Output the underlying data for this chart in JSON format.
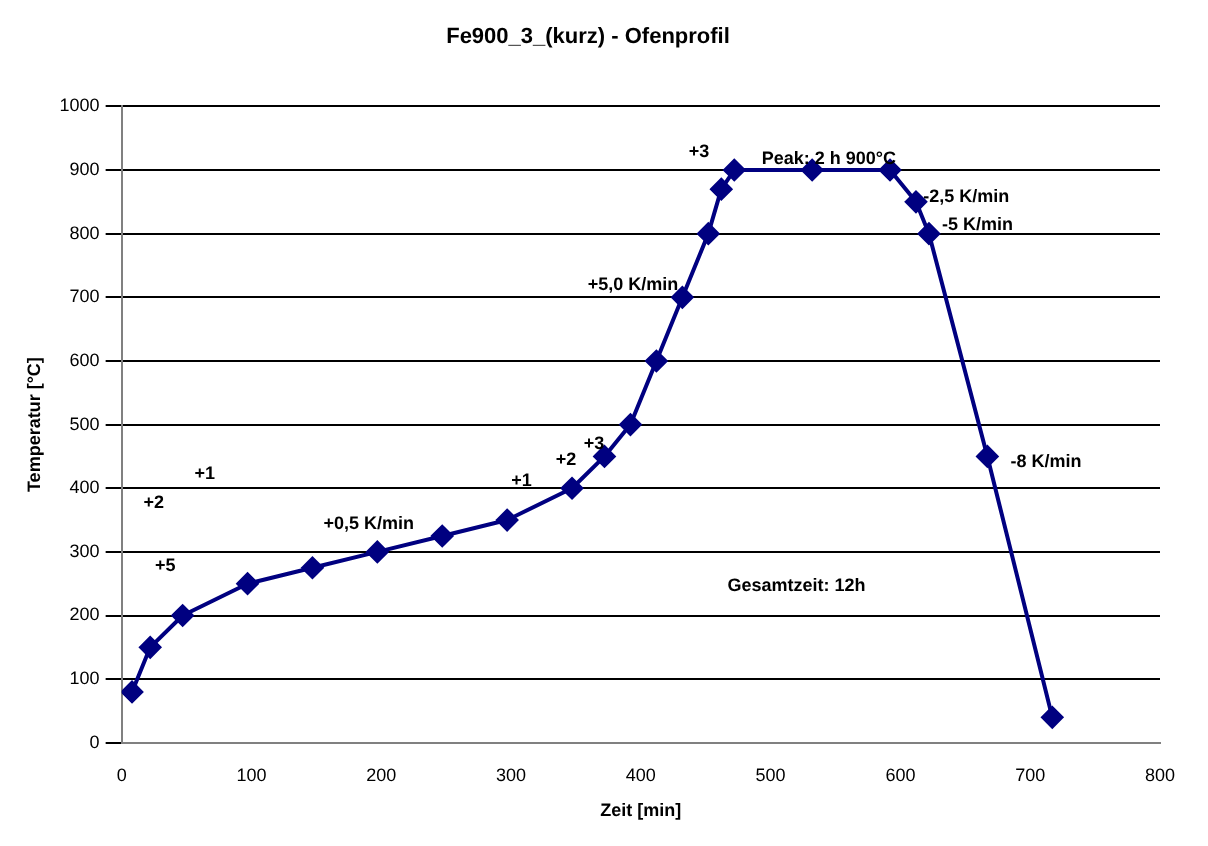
{
  "chart_data": {
    "type": "line",
    "title": "Fe900_3_(kurz) - Ofenprofil",
    "xlabel": "Zeit [min]",
    "ylabel": "Temperatur [°C]",
    "x": [
      8,
      22,
      47,
      97,
      147,
      197,
      247,
      297,
      347,
      372,
      392,
      412,
      432,
      452,
      462,
      472,
      532,
      592,
      612,
      622,
      667,
      717
    ],
    "series": [
      {
        "color": "#000080",
        "values": [
          80,
          150,
          200,
          250,
          275,
          300,
          325,
          350,
          400,
          450,
          500,
          600,
          700,
          800,
          870,
          900,
          900,
          900,
          850,
          800,
          450,
          40
        ]
      }
    ],
    "xlim": [
      0,
      800
    ],
    "xticks": [
      0,
      100,
      200,
      300,
      400,
      500,
      600,
      700,
      800
    ],
    "ylim": [
      0,
      1000
    ],
    "yticks": [
      0,
      100,
      200,
      300,
      400,
      500,
      600,
      700,
      800,
      900,
      1000
    ],
    "grid": "y",
    "legend": false,
    "marker": "diamond",
    "line_style": "solid",
    "annotations": [
      "+5",
      "+2",
      "+1",
      "+0,5 K/min",
      "+1",
      "+2",
      "+3",
      "+5,0 K/min",
      "+3",
      "Peak: 2 h 900°C",
      "-2,5 K/min",
      "-5 K/min",
      "-8 K/min",
      "Gesamtzeit: 12h"
    ]
  }
}
